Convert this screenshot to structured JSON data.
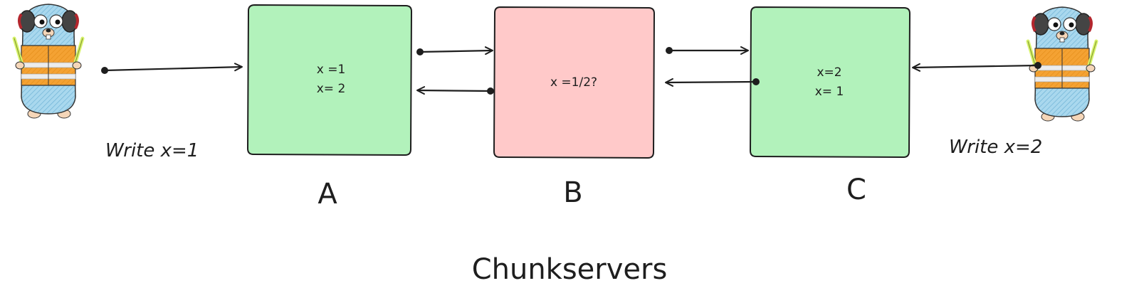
{
  "writers": {
    "left": {
      "label": "Write x=1"
    },
    "right": {
      "label": "Write x=2"
    }
  },
  "servers": [
    {
      "name": "A",
      "lines": [
        "x =1",
        "x= 2"
      ],
      "color": "#b2f2bb"
    },
    {
      "name": "B",
      "lines": [
        "x =1/2?"
      ],
      "color": "#ffc9c9"
    },
    {
      "name": "C",
      "lines": [
        "x=2",
        "x= 1"
      ],
      "color": "#b2f2bb"
    }
  ],
  "title": "Chunkservers",
  "colors": {
    "stroke": "#1e1e1e",
    "gopher_body": "#8ecae6",
    "vest": "#f4a233",
    "stripe": "#e9e9e9",
    "wand": "#d7f36b",
    "earmuff": "#444444"
  }
}
